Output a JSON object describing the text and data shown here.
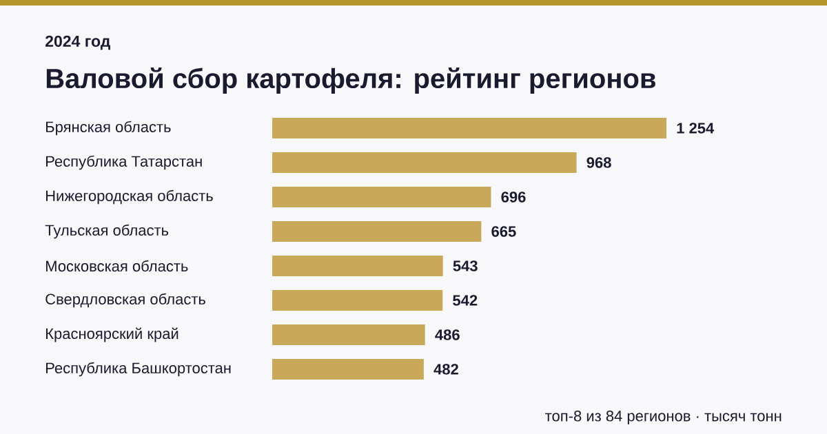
{
  "chart_data": {
    "type": "bar",
    "orientation": "horizontal",
    "title": "Валовой сбор картофеля: рейтинг регионов",
    "subtitle": "2024 год",
    "categories": [
      "Брянская область",
      "Республика Татарстан",
      "Нижегородская область",
      "Тульская область",
      "Московская область",
      "Свердловская область",
      "Красноярский край",
      "Республика Башкортостан"
    ],
    "values": [
      1254,
      968,
      696,
      665,
      543,
      542,
      486,
      482
    ],
    "value_labels": [
      "1 254",
      "968",
      "696",
      "665",
      "543",
      "542",
      "486",
      "482"
    ],
    "color": "#c8a95a",
    "annotations": [
      "топ-8 из 84 регионов · тысяч тонн"
    ]
  }
}
